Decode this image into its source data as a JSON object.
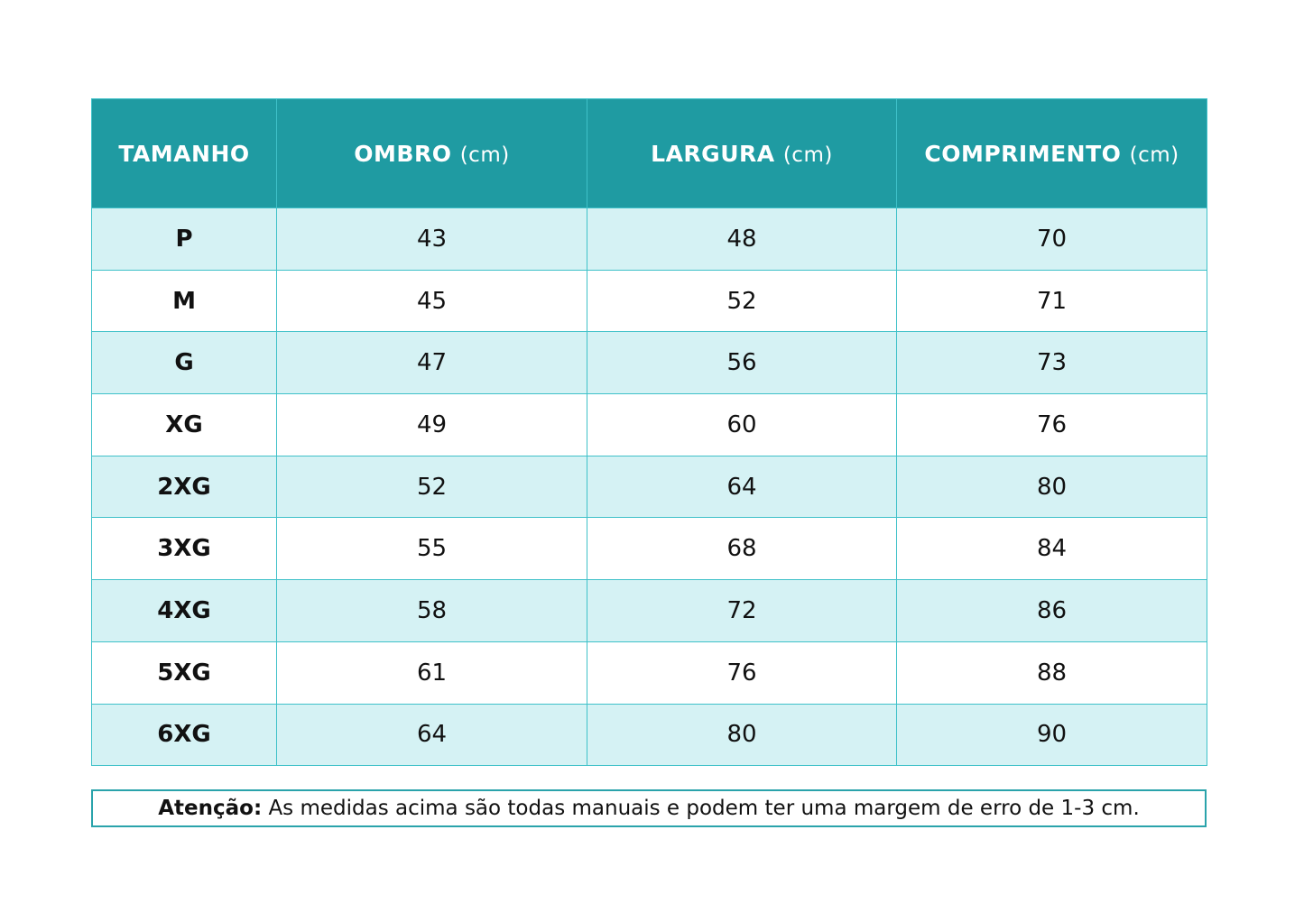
{
  "table": {
    "headers": [
      {
        "name": "TAMANHO"
      },
      {
        "name": "OMBRO",
        "unit": "(cm)"
      },
      {
        "name": "LARGURA",
        "unit": "(cm)"
      },
      {
        "name": "COMPRIMENTO",
        "unit": "(cm)"
      }
    ],
    "rows": [
      [
        "P",
        43,
        48,
        70
      ],
      [
        "M",
        45,
        52,
        71
      ],
      [
        "G",
        47,
        56,
        73
      ],
      [
        "XG",
        49,
        60,
        76
      ],
      [
        "2XG",
        52,
        64,
        80
      ],
      [
        "3XG",
        55,
        68,
        84
      ],
      [
        "4XG",
        58,
        72,
        86
      ],
      [
        "5XG",
        61,
        76,
        88
      ],
      [
        "6XG",
        64,
        80,
        90
      ]
    ]
  },
  "note": {
    "label": "Atenção:",
    "text": "As medidas acima são todas manuais e podem ter uma margem de erro de 1-3 cm."
  }
}
